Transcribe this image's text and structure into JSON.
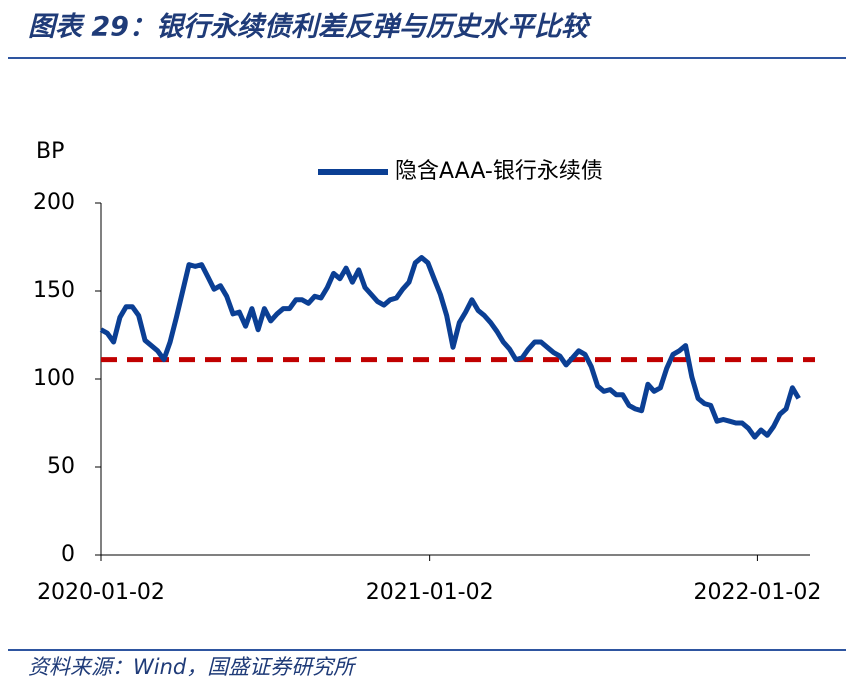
{
  "chart_data": {
    "type": "line",
    "title": "图表 29：银行永续债利差反弹与历史水平比较",
    "source": "资料来源：Wind，国盛证券研究所",
    "y_label": "BP",
    "x": [
      "2020-01-02",
      "2020-01-09",
      "2020-01-16",
      "2020-01-23",
      "2020-01-30",
      "2020-02-06",
      "2020-02-13",
      "2020-02-20",
      "2020-02-27",
      "2020-03-05",
      "2020-03-12",
      "2020-03-19",
      "2020-03-26",
      "2020-04-02",
      "2020-04-09",
      "2020-04-16",
      "2020-04-23",
      "2020-04-30",
      "2020-05-07",
      "2020-05-14",
      "2020-05-21",
      "2020-05-28",
      "2020-06-04",
      "2020-06-11",
      "2020-06-18",
      "2020-06-25",
      "2020-07-02",
      "2020-07-09",
      "2020-07-16",
      "2020-07-23",
      "2020-07-30",
      "2020-08-06",
      "2020-08-13",
      "2020-08-20",
      "2020-08-27",
      "2020-09-03",
      "2020-09-10",
      "2020-09-17",
      "2020-09-24",
      "2020-10-01",
      "2020-10-08",
      "2020-10-15",
      "2020-10-22",
      "2020-10-29",
      "2020-11-05",
      "2020-11-12",
      "2020-11-19",
      "2020-11-26",
      "2020-12-03",
      "2020-12-10",
      "2020-12-17",
      "2020-12-24",
      "2020-12-31",
      "2021-01-07",
      "2021-01-14",
      "2021-01-21",
      "2021-01-28",
      "2021-02-04",
      "2021-02-11",
      "2021-02-18",
      "2021-02-25",
      "2021-03-04",
      "2021-03-11",
      "2021-03-18",
      "2021-03-25",
      "2021-04-01",
      "2021-04-08",
      "2021-04-15",
      "2021-04-22",
      "2021-04-29",
      "2021-05-06",
      "2021-05-13",
      "2021-05-20",
      "2021-05-27",
      "2021-06-03",
      "2021-06-10",
      "2021-06-17",
      "2021-06-24",
      "2021-07-01",
      "2021-07-08",
      "2021-07-15",
      "2021-07-22",
      "2021-07-29",
      "2021-08-05",
      "2021-08-12",
      "2021-08-19",
      "2021-08-26",
      "2021-09-02",
      "2021-09-09",
      "2021-09-16",
      "2021-09-23",
      "2021-09-30",
      "2021-10-07",
      "2021-10-14",
      "2021-10-21",
      "2021-10-28",
      "2021-11-04",
      "2021-11-11",
      "2021-11-18",
      "2021-11-25",
      "2021-12-02",
      "2021-12-09",
      "2021-12-16",
      "2021-12-23",
      "2021-12-30",
      "2022-01-06",
      "2022-01-13",
      "2022-01-20",
      "2022-01-27",
      "2022-02-03",
      "2022-02-10",
      "2022-02-17"
    ],
    "series": [
      {
        "name": "隐含AAA-银行永续债",
        "color": "#0b3f94",
        "values": [
          128,
          126,
          121,
          135,
          141,
          141,
          136,
          122,
          119,
          116,
          111,
          121,
          135,
          150,
          165,
          164,
          165,
          158,
          151,
          153,
          147,
          137,
          138,
          130,
          140,
          128,
          140,
          133,
          137,
          140,
          140,
          145,
          145,
          143,
          147,
          146,
          152,
          160,
          157,
          163,
          155,
          162,
          152,
          148,
          144,
          142,
          145,
          146,
          151,
          155,
          166,
          169,
          166,
          157,
          148,
          136,
          118,
          132,
          138,
          145,
          139,
          136,
          132,
          127,
          121,
          117,
          111,
          112,
          117,
          121,
          121,
          118,
          115,
          113,
          108,
          112,
          116,
          114,
          107,
          96,
          93,
          94,
          91,
          91,
          85,
          83,
          82,
          97,
          93,
          95,
          106,
          114,
          116,
          119,
          101,
          89,
          86,
          85,
          76,
          77,
          76,
          75,
          75,
          72,
          67,
          71,
          68,
          73,
          80,
          83,
          95,
          89
        ]
      }
    ],
    "reference_line": {
      "value": 111,
      "color": "#c00000"
    },
    "xlim": [
      "2020-01-02",
      "2022-02-24"
    ],
    "xticks": [
      "2020-01-02",
      "2021-01-02",
      "2022-01-02"
    ],
    "ylim": [
      0,
      200
    ],
    "yticks": [
      0,
      50,
      100,
      150,
      200
    ]
  }
}
